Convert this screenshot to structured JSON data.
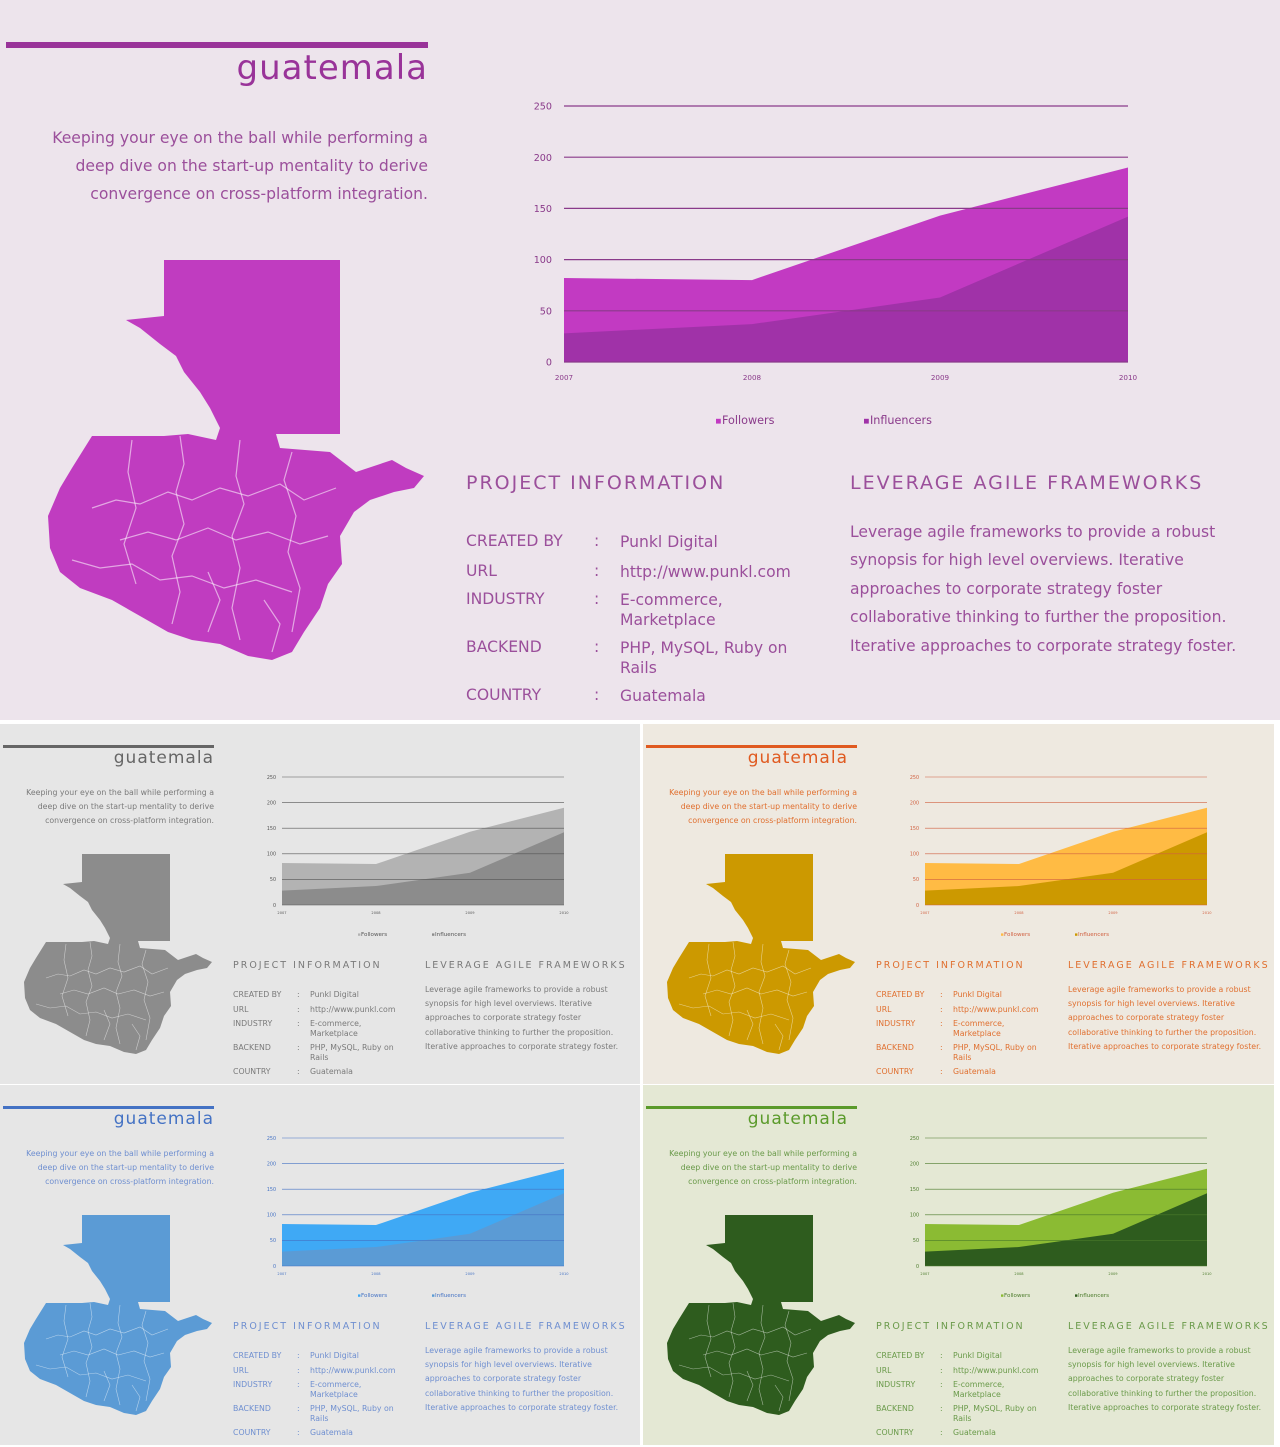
{
  "shared": {
    "title": "guatemala",
    "intro": "Keeping your eye on the ball while performing a deep dive on the start-up mentality to derive convergence on cross-platform integration.",
    "project_title": "PROJECT  INFORMATION",
    "info_rows": [
      {
        "label": "CREATED  BY",
        "colon": ":",
        "value": "Punkl Digital"
      },
      {
        "label": "URL",
        "colon": ":",
        "value": "http://www.punkl.com"
      },
      {
        "label": "INDUSTRY",
        "colon": ":",
        "value": "E-commerce, Marketplace"
      },
      {
        "label": "BACKEND",
        "colon": ":",
        "value": "PHP,  MySQL,  Ruby on Rails"
      },
      {
        "label": "COUNTRY",
        "colon": ":",
        "value": "Guatemala"
      }
    ],
    "agile_title": "LEVERAGE  AGILE  FRAMEWORKS",
    "agile_text": "Leverage agile frameworks to provide a robust synopsis for high level overviews. Iterative approaches to corporate strategy foster collaborative thinking to further the proposition. Iterative approaches to corporate strategy foster."
  },
  "chart_data": {
    "type": "area",
    "x": [
      "2007",
      "2008",
      "2009",
      "2010"
    ],
    "ylim": [
      0,
      250
    ],
    "yticks": [
      "0",
      "50",
      "100",
      "150",
      "200",
      "250"
    ],
    "series": [
      {
        "name": "Followers",
        "values": [
          82,
          80,
          143,
          190
        ]
      },
      {
        "name": "Influencers",
        "values": [
          28,
          37,
          63,
          142
        ]
      }
    ],
    "legend": "bottom"
  },
  "themes": [
    {
      "name": "purple",
      "bg": "#ede4ec",
      "accent": "#993399",
      "text": "#9b4f9b",
      "map": "#c03cc0",
      "followers": "#c23ac2",
      "influencers": "#a032a8",
      "grid": "#8a3a8a"
    },
    {
      "name": "gray",
      "bg": "#e6e6e6",
      "accent": "#666666",
      "text": "#7a7a7a",
      "map": "#8c8c8c",
      "followers": "#b3b3b3",
      "influencers": "#8c8c8c",
      "grid": "#555555"
    },
    {
      "name": "orange",
      "bg": "#eee9e0",
      "accent": "#e05a20",
      "text": "#e07030",
      "map": "#cc9900",
      "followers": "#ffbb44",
      "influencers": "#cc9900",
      "grid": "#d06040"
    },
    {
      "name": "blue",
      "bg": "#e6e6e6",
      "accent": "#4472c4",
      "text": "#6f8fd0",
      "map": "#5b9bd5",
      "followers": "#3fa9f5",
      "influencers": "#5b9bd5",
      "grid": "#4472c4"
    },
    {
      "name": "green",
      "bg": "#e4e8d4",
      "accent": "#5a9a2a",
      "text": "#6a9a4a",
      "map": "#2e5c1e",
      "followers": "#8bbb33",
      "influencers": "#2e5c1e",
      "grid": "#4a7a2a"
    }
  ]
}
